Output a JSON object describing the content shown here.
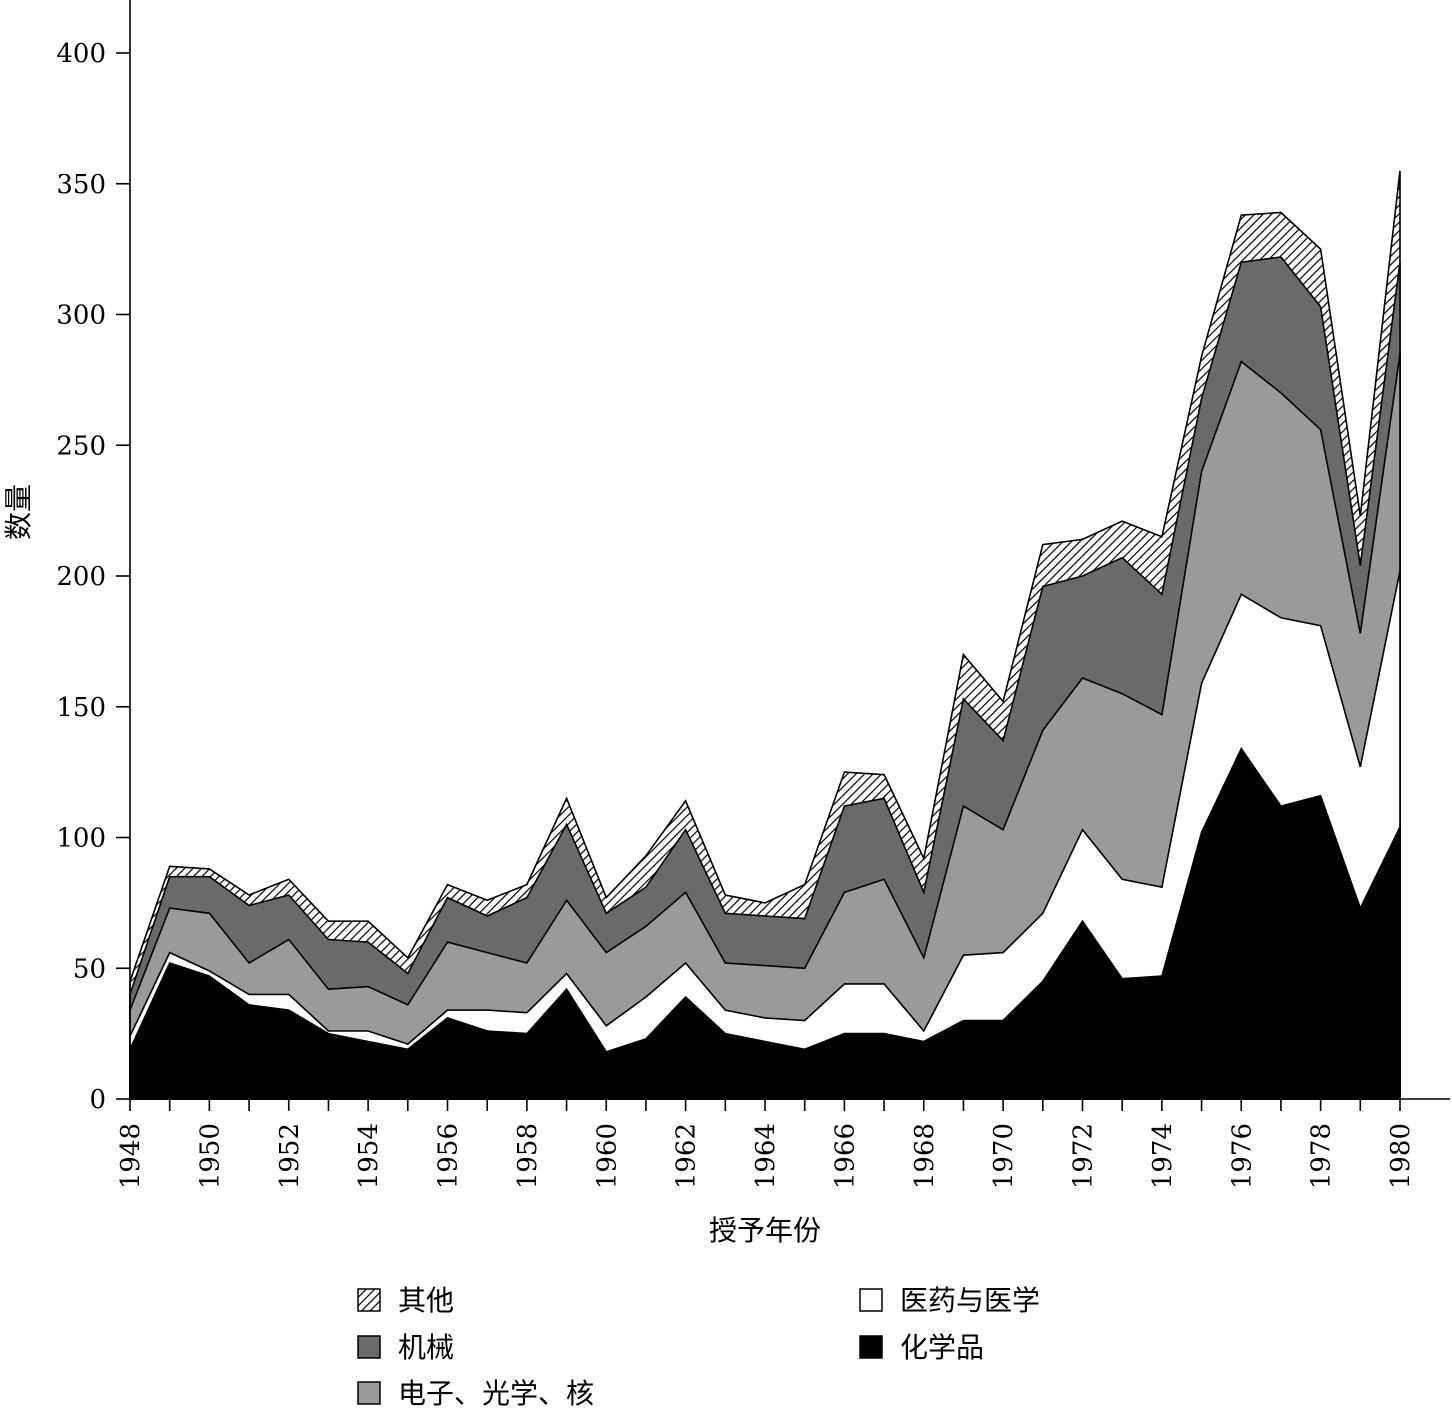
{
  "chart_data": {
    "type": "area",
    "stacked": true,
    "xlabel": "授予年份",
    "ylabel": "数量",
    "xlim": [
      1948,
      1980
    ],
    "ylim": [
      0,
      400
    ],
    "yticks": [
      0,
      50,
      100,
      150,
      200,
      250,
      300,
      350,
      400
    ],
    "xticks": [
      1948,
      1950,
      1952,
      1954,
      1956,
      1958,
      1960,
      1962,
      1964,
      1966,
      1968,
      1970,
      1972,
      1974,
      1976,
      1978,
      1980
    ],
    "grid": false,
    "legend_position": "bottom",
    "x": [
      1948,
      1949,
      1950,
      1951,
      1952,
      1953,
      1954,
      1955,
      1956,
      1957,
      1958,
      1959,
      1960,
      1961,
      1962,
      1963,
      1964,
      1965,
      1966,
      1967,
      1968,
      1969,
      1970,
      1971,
      1972,
      1973,
      1974,
      1975,
      1976,
      1977,
      1978,
      1979,
      1980
    ],
    "cumulative_top": true,
    "series": [
      {
        "name": "化学品",
        "fill": "black",
        "color": "#000000",
        "values": [
          19,
          52,
          47,
          36,
          34,
          25,
          22,
          19,
          31,
          26,
          25,
          42,
          18,
          23,
          39,
          25,
          22,
          19,
          25,
          25,
          22,
          30,
          30,
          45,
          68,
          46,
          47,
          102,
          134,
          112,
          116,
          73,
          104
        ]
      },
      {
        "name": "医药与医学",
        "fill": "white",
        "color": "#ffffff",
        "values": [
          24,
          56,
          49,
          40,
          40,
          26,
          26,
          21,
          34,
          34,
          33,
          48,
          28,
          39,
          52,
          34,
          31,
          30,
          44,
          44,
          26,
          55,
          56,
          71,
          103,
          84,
          81,
          159,
          193,
          184,
          181,
          127,
          202
        ]
      },
      {
        "name": "电子、光学、核",
        "fill": "lightgray",
        "color": "#9a9a9a",
        "values": [
          34,
          73,
          71,
          52,
          61,
          42,
          43,
          36,
          60,
          56,
          52,
          76,
          56,
          66,
          79,
          52,
          51,
          50,
          79,
          84,
          54,
          112,
          103,
          141,
          161,
          155,
          147,
          240,
          282,
          270,
          256,
          178,
          285
        ]
      },
      {
        "name": "机械",
        "fill": "darkgray",
        "color": "#6a6a6a",
        "values": [
          40,
          85,
          85,
          74,
          78,
          61,
          60,
          48,
          77,
          70,
          77,
          105,
          71,
          81,
          103,
          71,
          70,
          69,
          112,
          115,
          79,
          153,
          137,
          196,
          200,
          207,
          193,
          268,
          320,
          322,
          303,
          204,
          320
        ]
      },
      {
        "name": "其他",
        "fill": "hatch",
        "color": "#ffffff",
        "values": [
          45,
          89,
          88,
          78,
          84,
          68,
          68,
          54,
          82,
          76,
          82,
          115,
          77,
          93,
          114,
          78,
          75,
          82,
          125,
          124,
          92,
          170,
          152,
          212,
          214,
          221,
          215,
          284,
          338,
          339,
          325,
          223,
          355
        ]
      }
    ]
  }
}
